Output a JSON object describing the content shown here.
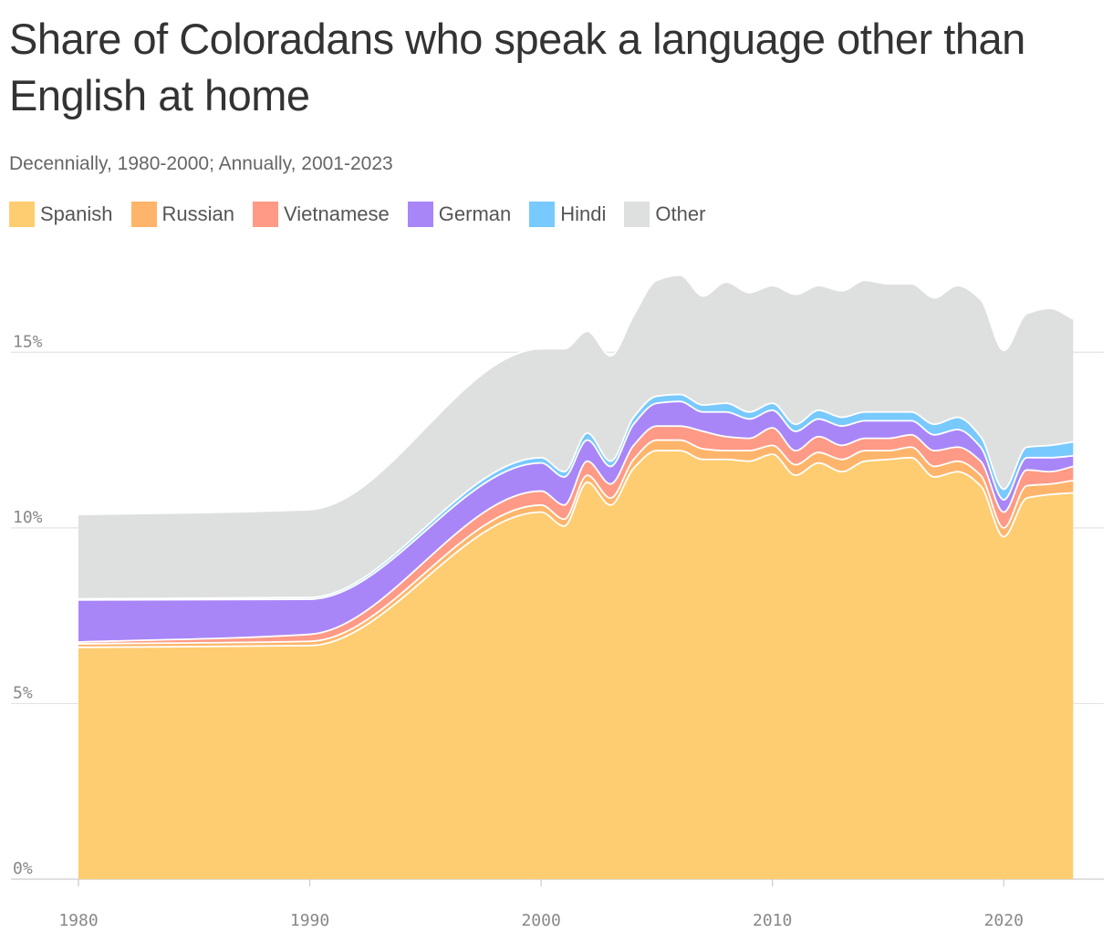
{
  "chart_data": {
    "type": "area",
    "stacked": true,
    "title": "Share of Coloradans who speak a language other than English at home",
    "subtitle": "Decennially, 1980-2000; Annually, 2001-2023",
    "xlabel": "",
    "ylabel": "",
    "ylim": [
      0,
      17.5
    ],
    "xlim": [
      1980,
      2023.5
    ],
    "y_ticks": [
      0,
      5,
      10,
      15
    ],
    "y_tick_labels": [
      "0%",
      "5%",
      "10%",
      "15%"
    ],
    "x_ticks": [
      1980,
      1990,
      2000,
      2010,
      2020
    ],
    "x_tick_labels": [
      "1980",
      "1990",
      "2000",
      "2010",
      "2020"
    ],
    "grid": "horizontal",
    "legend_position": "top-left",
    "x": [
      1980,
      1990,
      2000,
      2001,
      2002,
      2003,
      2004,
      2005,
      2006,
      2007,
      2008,
      2009,
      2010,
      2011,
      2012,
      2013,
      2014,
      2015,
      2016,
      2017,
      2018,
      2019,
      2020,
      2021,
      2022,
      2023
    ],
    "series": [
      {
        "name": "Spanish",
        "color": "#fecd71",
        "values": [
          6.6,
          6.65,
          10.45,
          10.05,
          11.3,
          10.65,
          11.7,
          12.2,
          12.2,
          11.95,
          11.95,
          11.9,
          12.1,
          11.5,
          11.85,
          11.6,
          11.9,
          11.95,
          12.0,
          11.45,
          11.6,
          11.2,
          9.75,
          10.85,
          10.95,
          11.0
        ]
      },
      {
        "name": "Russian",
        "color": "#feb56b",
        "values": [
          0.1,
          0.12,
          0.2,
          0.2,
          0.2,
          0.2,
          0.25,
          0.3,
          0.3,
          0.3,
          0.25,
          0.3,
          0.25,
          0.3,
          0.3,
          0.35,
          0.3,
          0.25,
          0.3,
          0.3,
          0.3,
          0.3,
          0.25,
          0.35,
          0.3,
          0.35
        ]
      },
      {
        "name": "Vietnamese",
        "color": "#fe9a86",
        "values": [
          0.05,
          0.2,
          0.4,
          0.4,
          0.4,
          0.4,
          0.4,
          0.4,
          0.4,
          0.5,
          0.4,
          0.35,
          0.5,
          0.4,
          0.45,
          0.4,
          0.35,
          0.35,
          0.35,
          0.45,
          0.4,
          0.4,
          0.45,
          0.45,
          0.35,
          0.4
        ]
      },
      {
        "name": "German",
        "color": "#a886f8",
        "values": [
          1.2,
          1.0,
          0.8,
          0.8,
          0.6,
          0.5,
          0.6,
          0.65,
          0.7,
          0.55,
          0.7,
          0.55,
          0.5,
          0.55,
          0.5,
          0.55,
          0.5,
          0.5,
          0.4,
          0.45,
          0.5,
          0.4,
          0.35,
          0.35,
          0.4,
          0.3
        ]
      },
      {
        "name": "Hindi",
        "color": "#78c9fe",
        "values": [
          0.03,
          0.05,
          0.15,
          0.15,
          0.2,
          0.15,
          0.2,
          0.2,
          0.2,
          0.2,
          0.25,
          0.2,
          0.2,
          0.2,
          0.25,
          0.25,
          0.25,
          0.25,
          0.25,
          0.3,
          0.35,
          0.3,
          0.3,
          0.3,
          0.35,
          0.4
        ]
      },
      {
        "name": "Other",
        "color": "#dedfdf",
        "values": [
          2.4,
          2.5,
          3.1,
          3.5,
          2.9,
          3.0,
          2.9,
          3.3,
          3.4,
          3.1,
          3.45,
          3.4,
          3.35,
          3.7,
          3.55,
          3.6,
          3.75,
          3.65,
          3.65,
          3.6,
          3.75,
          3.9,
          3.95,
          3.8,
          3.9,
          3.5
        ]
      }
    ]
  }
}
